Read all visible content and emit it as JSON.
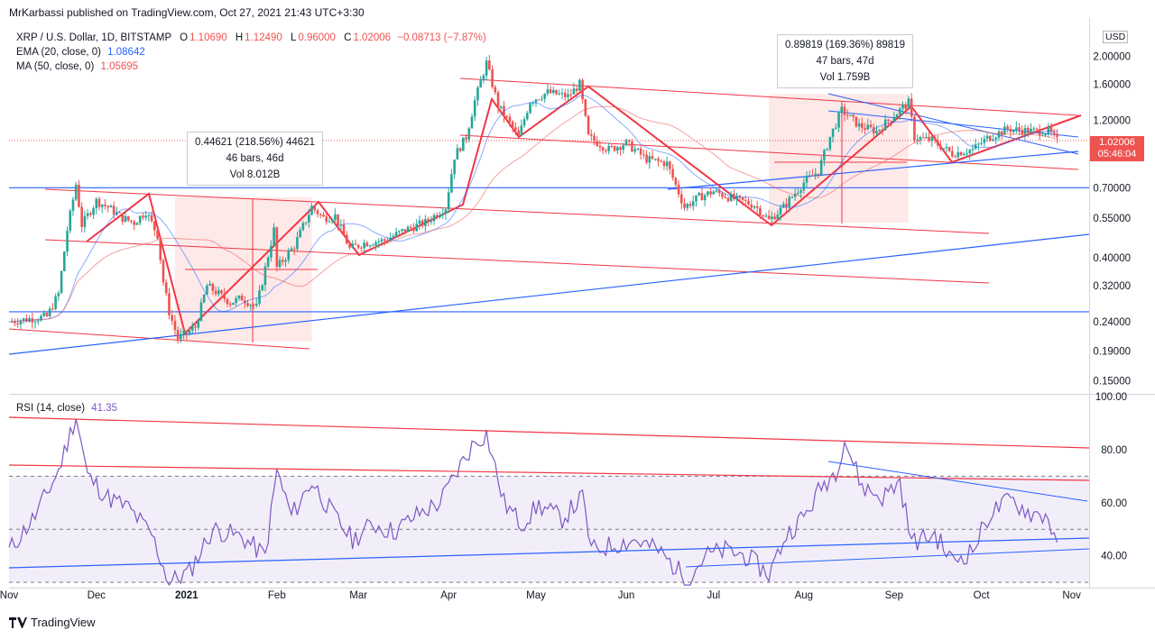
{
  "header": {
    "published": "MrKarbassi published on TradingView.com, Oct 27, 2021 21:43 UTC+3:30"
  },
  "legend": {
    "symbol": "XRP / U.S. Dollar, 1D, BITSTAMP",
    "o_label": "O",
    "o": "1.10690",
    "h_label": "H",
    "h": "1.12490",
    "l_label": "L",
    "l": "0.96000",
    "c_label": "C",
    "c": "1.02006",
    "change": "−0.08713 (−7.87%)",
    "ema_label": "EMA (20, close, 0)",
    "ema_value": "1.08642",
    "ma_label": "MA (50, close, 0)",
    "ma_value": "1.05695"
  },
  "rsi": {
    "label": "RSI (14, close)",
    "value": "41.35"
  },
  "price_tag": {
    "price": "1.02006",
    "countdown": "05:46:04"
  },
  "currency": "USD",
  "measure_box_1": {
    "line1": "0.44621 (218.56%) 44621",
    "line2": "46 bars, 46d",
    "line3": "Vol 8.012B"
  },
  "measure_box_2": {
    "line1": "0.89819 (169.36%) 89819",
    "line2": "47 bars, 47d",
    "line3": "Vol 1.759B"
  },
  "footer": {
    "brand": "TradingView"
  },
  "colors": {
    "up": "#26a69a",
    "down": "#ef5350",
    "ema": "#2962ff",
    "ma": "#ef5350",
    "rsi": "#7e57c2",
    "blue_line": "#2962ff",
    "red_line": "#f23645"
  },
  "chart_data": [
    {
      "type": "candlestick",
      "title": "XRP / U.S. Dollar, 1D, BITSTAMP",
      "scale": "log",
      "ylim": [
        0.135,
        2.6
      ],
      "y_ticks": [
        "2.00000",
        "1.60000",
        "1.20000",
        "0.70000",
        "0.55000",
        "0.40000",
        "0.32000",
        "0.24000",
        "0.19000",
        "0.15000"
      ],
      "y_tick_values": [
        2.0,
        1.6,
        1.2,
        0.7,
        0.55,
        0.4,
        0.32,
        0.24,
        0.19,
        0.15
      ],
      "x_labels": [
        "Nov",
        "Dec",
        "2021",
        "Feb",
        "Mar",
        "Apr",
        "May",
        "Jun",
        "Jul",
        "Aug",
        "Sep",
        "Oct",
        "Nov"
      ],
      "x_start": "2020-11-01",
      "x_end": "2021-11-07",
      "close_path": [
        [
          "2020-11-01",
          0.24
        ],
        [
          "2020-11-07",
          0.245
        ],
        [
          "2020-11-14",
          0.25
        ],
        [
          "2020-11-18",
          0.3
        ],
        [
          "2020-11-21",
          0.5
        ],
        [
          "2020-11-24",
          0.72
        ],
        [
          "2020-11-26",
          0.52
        ],
        [
          "2020-12-01",
          0.63
        ],
        [
          "2020-12-05",
          0.6
        ],
        [
          "2020-12-10",
          0.55
        ],
        [
          "2020-12-14",
          0.53
        ],
        [
          "2020-12-18",
          0.58
        ],
        [
          "2020-12-22",
          0.48
        ],
        [
          "2020-12-24",
          0.33
        ],
        [
          "2020-12-26",
          0.26
        ],
        [
          "2020-12-29",
          0.21
        ],
        [
          "2021-01-04",
          0.23
        ],
        [
          "2021-01-08",
          0.32
        ],
        [
          "2021-01-12",
          0.3
        ],
        [
          "2021-01-16",
          0.28
        ],
        [
          "2021-01-20",
          0.29
        ],
        [
          "2021-01-25",
          0.27
        ],
        [
          "2021-01-31",
          0.5
        ],
        [
          "2021-02-01",
          0.37
        ],
        [
          "2021-02-07",
          0.44
        ],
        [
          "2021-02-13",
          0.6
        ],
        [
          "2021-02-17",
          0.55
        ],
        [
          "2021-02-21",
          0.56
        ],
        [
          "2021-02-26",
          0.43
        ],
        [
          "2021-03-03",
          0.45
        ],
        [
          "2021-03-10",
          0.46
        ],
        [
          "2021-03-17",
          0.5
        ],
        [
          "2021-03-24",
          0.53
        ],
        [
          "2021-03-31",
          0.6
        ],
        [
          "2021-04-03",
          0.9
        ],
        [
          "2021-04-07",
          1.05
        ],
        [
          "2021-04-10",
          1.4
        ],
        [
          "2021-04-14",
          1.9
        ],
        [
          "2021-04-18",
          1.35
        ],
        [
          "2021-04-25",
          1.05
        ],
        [
          "2021-04-29",
          1.4
        ],
        [
          "2021-05-05",
          1.5
        ],
        [
          "2021-05-12",
          1.45
        ],
        [
          "2021-05-16",
          1.6
        ],
        [
          "2021-05-19",
          1.05
        ],
        [
          "2021-05-26",
          0.95
        ],
        [
          "2021-06-01",
          1.0
        ],
        [
          "2021-06-08",
          0.88
        ],
        [
          "2021-06-15",
          0.85
        ],
        [
          "2021-06-21",
          0.6
        ],
        [
          "2021-06-26",
          0.65
        ],
        [
          "2021-07-01",
          0.68
        ],
        [
          "2021-07-08",
          0.64
        ],
        [
          "2021-07-15",
          0.61
        ],
        [
          "2021-07-20",
          0.54
        ],
        [
          "2021-07-25",
          0.6
        ],
        [
          "2021-08-01",
          0.73
        ],
        [
          "2021-08-06",
          0.8
        ],
        [
          "2021-08-10",
          1.05
        ],
        [
          "2021-08-14",
          1.3
        ],
        [
          "2021-08-20",
          1.15
        ],
        [
          "2021-08-26",
          1.1
        ],
        [
          "2021-09-01",
          1.25
        ],
        [
          "2021-09-06",
          1.38
        ],
        [
          "2021-09-08",
          1.05
        ],
        [
          "2021-09-14",
          1.02
        ],
        [
          "2021-09-21",
          0.92
        ],
        [
          "2021-09-28",
          0.95
        ],
        [
          "2021-10-03",
          1.04
        ],
        [
          "2021-10-10",
          1.12
        ],
        [
          "2021-10-18",
          1.1
        ],
        [
          "2021-10-24",
          1.1
        ],
        [
          "2021-10-27",
          1.02
        ]
      ]
    },
    {
      "type": "line",
      "title": "RSI (14, close)",
      "ylim": [
        28,
        100
      ],
      "y_ticks": [
        "100.00",
        "80.00",
        "60.00",
        "40.00"
      ],
      "y_tick_values": [
        100,
        80,
        60,
        40
      ],
      "bands": [
        70,
        50,
        30
      ],
      "points": [
        [
          "2020-11-01",
          42
        ],
        [
          "2020-11-10",
          55
        ],
        [
          "2020-11-18",
          72
        ],
        [
          "2020-11-24",
          93
        ],
        [
          "2020-11-28",
          70
        ],
        [
          "2020-12-05",
          62
        ],
        [
          "2020-12-12",
          58
        ],
        [
          "2020-12-20",
          48
        ],
        [
          "2020-12-26",
          30
        ],
        [
          "2021-01-02",
          34
        ],
        [
          "2021-01-10",
          50
        ],
        [
          "2021-01-20",
          47
        ],
        [
          "2021-01-28",
          40
        ],
        [
          "2021-02-01",
          72
        ],
        [
          "2021-02-06",
          55
        ],
        [
          "2021-02-13",
          68
        ],
        [
          "2021-02-20",
          56
        ],
        [
          "2021-02-27",
          46
        ],
        [
          "2021-03-06",
          52
        ],
        [
          "2021-03-13",
          49
        ],
        [
          "2021-03-22",
          56
        ],
        [
          "2021-03-29",
          60
        ],
        [
          "2021-04-05",
          74
        ],
        [
          "2021-04-10",
          83
        ],
        [
          "2021-04-14",
          86
        ],
        [
          "2021-04-20",
          60
        ],
        [
          "2021-04-26",
          52
        ],
        [
          "2021-05-02",
          59
        ],
        [
          "2021-05-10",
          54
        ],
        [
          "2021-05-17",
          62
        ],
        [
          "2021-05-20",
          42
        ],
        [
          "2021-05-27",
          44
        ],
        [
          "2021-06-04",
          46
        ],
        [
          "2021-06-12",
          42
        ],
        [
          "2021-06-22",
          31
        ],
        [
          "2021-06-28",
          40
        ],
        [
          "2021-07-05",
          42
        ],
        [
          "2021-07-12",
          40
        ],
        [
          "2021-07-20",
          33
        ],
        [
          "2021-07-26",
          48
        ],
        [
          "2021-08-02",
          56
        ],
        [
          "2021-08-07",
          66
        ],
        [
          "2021-08-12",
          72
        ],
        [
          "2021-08-15",
          84
        ],
        [
          "2021-08-21",
          66
        ],
        [
          "2021-08-28",
          62
        ],
        [
          "2021-09-03",
          68
        ],
        [
          "2021-09-07",
          45
        ],
        [
          "2021-09-15",
          48
        ],
        [
          "2021-09-21",
          38
        ],
        [
          "2021-09-28",
          42
        ],
        [
          "2021-10-04",
          56
        ],
        [
          "2021-10-11",
          61
        ],
        [
          "2021-10-18",
          56
        ],
        [
          "2021-10-24",
          55
        ],
        [
          "2021-10-27",
          41.35
        ]
      ]
    }
  ]
}
